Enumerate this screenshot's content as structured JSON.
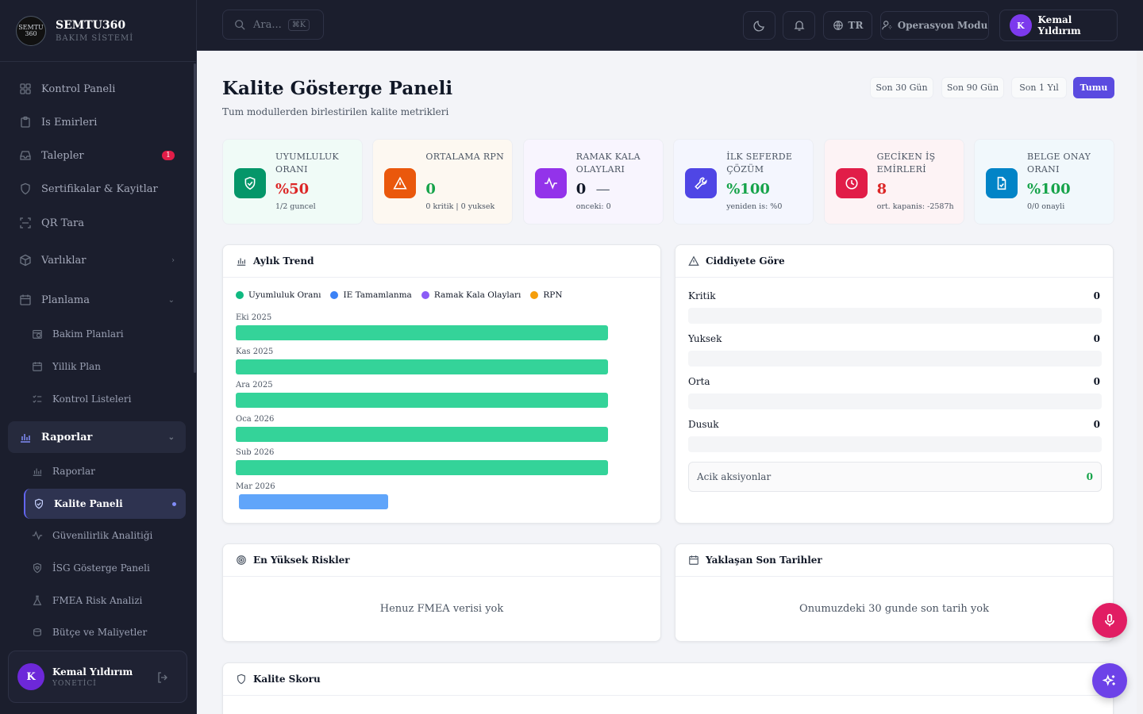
{
  "brand": {
    "logo_text": "SEMTU 360",
    "name": "SEMTU360",
    "subtitle": "BAKIM SİSTEMİ"
  },
  "sidebar": {
    "items": [
      {
        "label": "Kontrol Paneli",
        "icon": "grid-icon"
      },
      {
        "label": "Is Emirleri",
        "icon": "clipboard-icon"
      },
      {
        "label": "Talepler",
        "icon": "inbox-icon",
        "badge": "1"
      },
      {
        "label": "Sertifikalar & Kayitlar",
        "icon": "shield-icon"
      },
      {
        "label": "QR Tara",
        "icon": "scan-icon"
      },
      {
        "label": "Varlıklar",
        "icon": "box-icon"
      },
      {
        "label": "Planlama",
        "icon": "calendar-icon"
      }
    ],
    "planlama_sub": [
      {
        "label": "Bakim Planlari",
        "icon": "calendar-clock-icon"
      },
      {
        "label": "Yillik Plan",
        "icon": "calendar-icon"
      },
      {
        "label": "Kontrol Listeleri",
        "icon": "list-check-icon"
      }
    ],
    "reports": {
      "label": "Raporlar",
      "icon": "bar-chart-icon"
    },
    "reports_sub": [
      {
        "label": "Raporlar",
        "icon": "bar-chart-icon"
      },
      {
        "label": "Kalite Paneli",
        "icon": "shield-check-icon",
        "active": true
      },
      {
        "label": "Güvenilirlik Analitiği",
        "icon": "activity-icon"
      },
      {
        "label": "İSG Gösterge Paneli",
        "icon": "shield-heart-icon"
      },
      {
        "label": "FMEA Risk Analizi",
        "icon": "flask-icon"
      },
      {
        "label": "Bütçe ve Maliyetler",
        "icon": "coins-icon"
      }
    ],
    "user": {
      "initial": "K",
      "name": "Kemal Yıldırım",
      "role": "YONETİCİ"
    }
  },
  "topbar": {
    "search_placeholder": "Ara...",
    "search_shortcut": "⌘K",
    "language": "TR",
    "mode_label": "Operasyon Modu",
    "user_initial": "K",
    "user_name": "Kemal Yıldırım"
  },
  "page": {
    "title": "Kalite Gösterge Paneli",
    "subtitle": "Tum modullerden birlestirilen kalite metrikleri",
    "periods": [
      "Son 30 Gün",
      "Son 90 Gün",
      "Son 1 Yıl",
      "Tumu"
    ],
    "active_period": "Tumu"
  },
  "kpis": [
    {
      "label": "UYUMLULUK ORANI",
      "value": "%50",
      "sub": "1/2 guncel",
      "color": "#059669",
      "value_color": "#dc2626",
      "bg": "#f0fbf7",
      "icon": "shield-check-icon"
    },
    {
      "label": "ORTALAMA RPN",
      "value": "0",
      "sub": "0 kritik | 0 yuksek",
      "color": "#ea580c",
      "value_color": "#16a34a",
      "bg": "#fdf8f1",
      "icon": "alert-triangle-icon"
    },
    {
      "label": "RAMAK KALA OLAYLARI",
      "value": "0",
      "trend": "—",
      "sub": "onceki: 0",
      "color": "#9333ea",
      "value_color": "#111827",
      "bg": "#f8f5fe",
      "icon": "activity-icon"
    },
    {
      "label": "İLK SEFERDE ÇÖZÜM",
      "value": "%100",
      "sub": "yeniden is: %0",
      "color": "#4f46e5",
      "value_color": "#16a34a",
      "bg": "#f4f6fe",
      "icon": "wrench-icon"
    },
    {
      "label": "GECİKEN İŞ EMİRLERİ",
      "value": "8",
      "sub": "ort. kapanis: -2587h",
      "color": "#e11d48",
      "value_color": "#dc2626",
      "bg": "#fdf3f5",
      "icon": "clock-icon"
    },
    {
      "label": "BELGE ONAY ORANI",
      "value": "%100",
      "sub": "0/0 onayli",
      "color": "#0284c7",
      "value_color": "#16a34a",
      "bg": "#f1f8fc",
      "icon": "file-check-icon"
    }
  ],
  "trend": {
    "title": "Aylık Trend",
    "legend": [
      {
        "name": "Uyumluluk Oranı",
        "color": "#10b981"
      },
      {
        "name": "IE Tamamlanma",
        "color": "#3b82f6"
      },
      {
        "name": "Ramak Kala Olayları",
        "color": "#8b5cf6"
      },
      {
        "name": "RPN",
        "color": "#f59e0b"
      }
    ]
  },
  "chart_data": {
    "type": "bar",
    "categories": [
      "Eki 2025",
      "Kas 2025",
      "Ara 2025",
      "Oca 2026",
      "Sub 2026",
      "Mar 2026"
    ],
    "series": [
      {
        "name": "Uyumluluk Oranı",
        "color": "#34d399",
        "values": [
          100,
          100,
          100,
          100,
          100,
          null
        ]
      },
      {
        "name": "IE Tamamlanma",
        "color": "#60a5fa",
        "values": [
          null,
          null,
          null,
          null,
          null,
          40
        ]
      }
    ]
  },
  "severity": {
    "title": "Ciddiyete Göre",
    "rows": [
      {
        "name": "Kritik",
        "value": "0"
      },
      {
        "name": "Yuksek",
        "value": "0"
      },
      {
        "name": "Orta",
        "value": "0"
      },
      {
        "name": "Dusuk",
        "value": "0"
      }
    ],
    "actions_label": "Acik aksiyonlar",
    "actions_value": "0"
  },
  "risks": {
    "title": "En Yüksek Riskler",
    "empty": "Henuz FMEA verisi yok"
  },
  "deadlines": {
    "title": "Yaklaşan Son Tarihler",
    "empty": "Onumuzdeki 30 gunde son tarih yok"
  },
  "score": {
    "title": "Kalite Skoru"
  }
}
